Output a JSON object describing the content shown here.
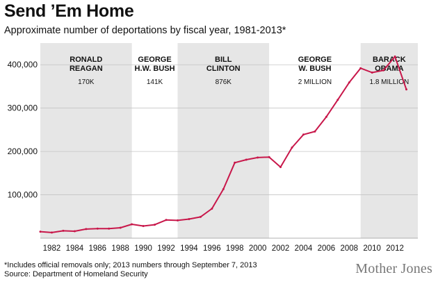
{
  "header": {
    "title": "Send ’Em Home",
    "subtitle": "Approximate number of deportations by fiscal year, 1981-2013*"
  },
  "chart_data": {
    "type": "line",
    "title": "Send ’Em Home",
    "subtitle": "Approximate number of deportations by fiscal year, 1981-2013*",
    "xlabel": "",
    "ylabel": "",
    "xlim": [
      1981,
      2014
    ],
    "ylim": [
      0,
      450000
    ],
    "grid": true,
    "line_color": "#c8174a",
    "shade_color": "#e6e6e6",
    "x_ticks": [
      1982,
      1984,
      1986,
      1988,
      1990,
      1992,
      1994,
      1996,
      1998,
      2000,
      2002,
      2004,
      2006,
      2008,
      2010,
      2012
    ],
    "y_ticks": [
      100000,
      200000,
      300000,
      400000
    ],
    "y_tick_labels": [
      "100,000",
      "200,000",
      "300,000",
      "400,000"
    ],
    "series": [
      {
        "name": "Deportations",
        "x": [
          1981,
          1982,
          1983,
          1984,
          1985,
          1986,
          1987,
          1988,
          1989,
          1990,
          1991,
          1992,
          1993,
          1994,
          1995,
          1996,
          1997,
          1998,
          1999,
          2000,
          2001,
          2002,
          2003,
          2004,
          2005,
          2006,
          2007,
          2008,
          2009,
          2010,
          2011,
          2012,
          2013
        ],
        "values": [
          15000,
          13000,
          17000,
          16000,
          21000,
          22000,
          22000,
          24000,
          32000,
          28000,
          31000,
          42000,
          41000,
          44000,
          49000,
          68000,
          113000,
          174000,
          181000,
          186000,
          187000,
          164000,
          209000,
          239000,
          246000,
          280000,
          319000,
          359000,
          392000,
          382000,
          387000,
          419000,
          343000
        ]
      }
    ],
    "eras": [
      {
        "name_line1": "RONALD",
        "name_line2": "REAGAN",
        "total": "170K",
        "start": 1981,
        "end": 1989,
        "shaded": true
      },
      {
        "name_line1": "GEORGE",
        "name_line2": "H.W. BUSH",
        "total": "141K",
        "start": 1989,
        "end": 1993,
        "shaded": false
      },
      {
        "name_line1": "BILL",
        "name_line2": "CLINTON",
        "total": "876K",
        "start": 1993,
        "end": 2001,
        "shaded": true
      },
      {
        "name_line1": "GEORGE",
        "name_line2": "W. BUSH",
        "total": "2 MILLION",
        "start": 2001,
        "end": 2009,
        "shaded": false
      },
      {
        "name_line1": "BARACK",
        "name_line2": "OBAMA",
        "total": "1.8 MILLION",
        "start": 2009,
        "end": 2014,
        "shaded": true
      }
    ]
  },
  "footer": {
    "footnote": "*Includes official removals only; 2013 numbers through September 7, 2013",
    "source": "Source: Department of Homeland Security",
    "brand": "Mother Jones"
  }
}
